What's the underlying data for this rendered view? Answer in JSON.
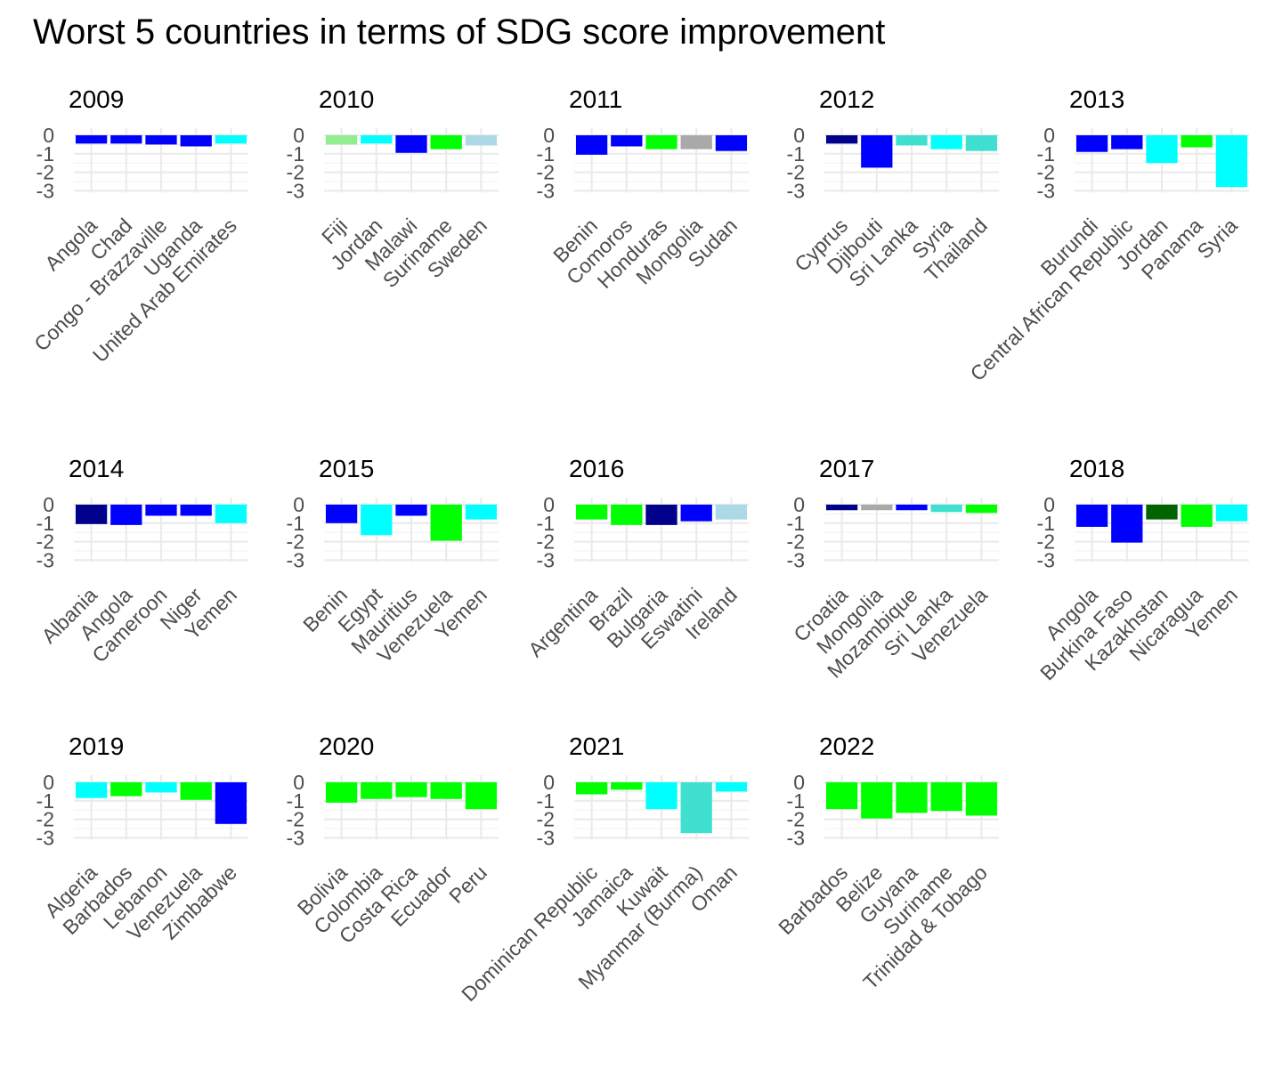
{
  "chart_data": {
    "type": "bar",
    "title": "Worst 5 countries in terms of SDG score improvement",
    "xlabel": "",
    "ylabel": "",
    "ylim": [
      -3,
      0
    ],
    "y_ticks": [
      0,
      -1,
      -2,
      -3
    ],
    "y_tick_labels": [
      "0",
      "-1",
      "-2",
      "-3"
    ],
    "grid": true,
    "facets": [
      {
        "title": "2009",
        "categories": [
          "Angola",
          "Chad",
          "Congo - Brazzaville",
          "Uganda",
          "United Arab Emirates"
        ],
        "values": [
          -0.45,
          -0.45,
          -0.5,
          -0.6,
          -0.45
        ],
        "colors": [
          "#0000ff",
          "#0000ff",
          "#0000ff",
          "#0000ff",
          "#00ffff"
        ]
      },
      {
        "title": "2010",
        "categories": [
          "Fiji",
          "Jordan",
          "Malawi",
          "Suriname",
          "Sweden"
        ],
        "values": [
          -0.5,
          -0.45,
          -0.95,
          -0.75,
          -0.55
        ],
        "colors": [
          "#90ee90",
          "#00ffff",
          "#0000ff",
          "#00ff00",
          "#add8e6"
        ]
      },
      {
        "title": "2011",
        "categories": [
          "Benin",
          "Comoros",
          "Honduras",
          "Mongolia",
          "Sudan"
        ],
        "values": [
          -1.05,
          -0.6,
          -0.75,
          -0.75,
          -0.85
        ],
        "colors": [
          "#0000ff",
          "#0000ff",
          "#00ff00",
          "#a9a9a9",
          "#0000ff"
        ]
      },
      {
        "title": "2012",
        "categories": [
          "Cyprus",
          "Djibouti",
          "Sri Lanka",
          "Syria",
          "Thailand"
        ],
        "values": [
          -0.45,
          -1.75,
          -0.55,
          -0.75,
          -0.85
        ],
        "colors": [
          "#00008b",
          "#0000ff",
          "#40e0d0",
          "#00ffff",
          "#40e0d0"
        ]
      },
      {
        "title": "2013",
        "categories": [
          "Burundi",
          "Central African Republic",
          "Jordan",
          "Panama",
          "Syria"
        ],
        "values": [
          -0.9,
          -0.75,
          -1.5,
          -0.65,
          -2.8
        ],
        "colors": [
          "#0000ff",
          "#0000ff",
          "#00ffff",
          "#00ff00",
          "#00ffff"
        ]
      },
      {
        "title": "2014",
        "categories": [
          "Albania",
          "Angola",
          "Cameroon",
          "Niger",
          "Yemen"
        ],
        "values": [
          -1.05,
          -1.1,
          -0.6,
          -0.6,
          -1.0
        ],
        "colors": [
          "#00008b",
          "#0000ff",
          "#0000ff",
          "#0000ff",
          "#00ffff"
        ]
      },
      {
        "title": "2015",
        "categories": [
          "Benin",
          "Egypt",
          "Mauritius",
          "Venezuela",
          "Yemen"
        ],
        "values": [
          -1.0,
          -1.65,
          -0.6,
          -1.95,
          -0.8
        ],
        "colors": [
          "#0000ff",
          "#00ffff",
          "#0000ff",
          "#00ff00",
          "#00ffff"
        ]
      },
      {
        "title": "2016",
        "categories": [
          "Argentina",
          "Brazil",
          "Bulgaria",
          "Eswatini",
          "Ireland"
        ],
        "values": [
          -0.8,
          -1.1,
          -1.1,
          -0.9,
          -0.8
        ],
        "colors": [
          "#00ff00",
          "#00ff00",
          "#00008b",
          "#0000ff",
          "#add8e6"
        ]
      },
      {
        "title": "2017",
        "categories": [
          "Croatia",
          "Mongolia",
          "Mozambique",
          "Sri Lanka",
          "Venezuela"
        ],
        "values": [
          -0.3,
          -0.3,
          -0.3,
          -0.4,
          -0.45
        ],
        "colors": [
          "#00008b",
          "#a9a9a9",
          "#0000ff",
          "#40e0d0",
          "#00ff00"
        ]
      },
      {
        "title": "2018",
        "categories": [
          "Angola",
          "Burkina Faso",
          "Kazakhstan",
          "Nicaragua",
          "Yemen"
        ],
        "values": [
          -1.2,
          -2.05,
          -0.8,
          -1.2,
          -0.9
        ],
        "colors": [
          "#0000ff",
          "#0000ff",
          "#006400",
          "#00ff00",
          "#00ffff"
        ]
      },
      {
        "title": "2019",
        "categories": [
          "Algeria",
          "Barbados",
          "Lebanon",
          "Venezuela",
          "Zimbabwe"
        ],
        "values": [
          -0.85,
          -0.75,
          -0.55,
          -0.95,
          -2.25
        ],
        "colors": [
          "#00ffff",
          "#00ff00",
          "#00ffff",
          "#00ff00",
          "#0000ff"
        ]
      },
      {
        "title": "2020",
        "categories": [
          "Bolivia",
          "Colombia",
          "Costa Rica",
          "Ecuador",
          "Peru"
        ],
        "values": [
          -1.1,
          -0.9,
          -0.8,
          -0.9,
          -1.45
        ],
        "colors": [
          "#00ff00",
          "#00ff00",
          "#00ff00",
          "#00ff00",
          "#00ff00"
        ]
      },
      {
        "title": "2021",
        "categories": [
          "Dominican Republic",
          "Jamaica",
          "Kuwait",
          "Myanmar (Burma)",
          "Oman"
        ],
        "values": [
          -0.65,
          -0.4,
          -1.45,
          -2.75,
          -0.5
        ],
        "colors": [
          "#00ff00",
          "#00ff00",
          "#00ffff",
          "#40e0d0",
          "#00ffff"
        ]
      },
      {
        "title": "2022",
        "categories": [
          "Barbados",
          "Belize",
          "Guyana",
          "Suriname",
          "Trinidad & Tobago"
        ],
        "values": [
          -1.45,
          -1.95,
          -1.65,
          -1.55,
          -1.8
        ],
        "colors": [
          "#00ff00",
          "#00ff00",
          "#00ff00",
          "#00ff00",
          "#00ff00"
        ]
      }
    ]
  }
}
